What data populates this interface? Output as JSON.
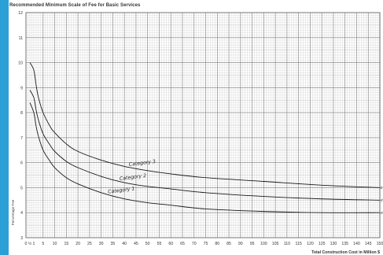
{
  "page": {
    "title": "Recommended Minimum Scale of Fee for Basic Services",
    "accent_color": "#2aa0d6"
  },
  "chart_data": {
    "type": "line",
    "title": "Recommended Minimum Scale of Fee for Basic Services",
    "xlabel": "Total Construction Cost in Million $",
    "ylabel": "Percentage Fee",
    "xlim": [
      0,
      150
    ],
    "ylim": [
      3,
      12
    ],
    "x_ticks": [
      0,
      0.5,
      1,
      5,
      10,
      15,
      20,
      25,
      30,
      35,
      40,
      45,
      50,
      55,
      60,
      65,
      70,
      75,
      80,
      85,
      90,
      95,
      100,
      105,
      110,
      115,
      120,
      125,
      130,
      135,
      140,
      145,
      150
    ],
    "x_tick_labels": [
      "0",
      "½",
      "1",
      "5",
      "10",
      "15",
      "20",
      "25",
      "30",
      "35",
      "40",
      "45",
      "50",
      "55",
      "60",
      "65",
      "70",
      "75",
      "80",
      "85",
      "90",
      "95",
      "100",
      "105",
      "110",
      "115",
      "120",
      "125",
      "130",
      "135",
      "140",
      "145",
      "150"
    ],
    "y_ticks": [
      3,
      4,
      5,
      6,
      7,
      8,
      9,
      10,
      11,
      12
    ],
    "grid": true,
    "series": [
      {
        "name": "Category 3",
        "label": "Category 3",
        "label_x": 42,
        "x": [
          0.5,
          1,
          2,
          3,
          5,
          8,
          10,
          15,
          20,
          30,
          40,
          50,
          60,
          75,
          100,
          125,
          150
        ],
        "values": [
          10.0,
          9.7,
          9.1,
          8.6,
          8.0,
          7.45,
          7.2,
          6.75,
          6.45,
          6.1,
          5.85,
          5.68,
          5.55,
          5.4,
          5.25,
          5.1,
          5.0
        ]
      },
      {
        "name": "Category 2",
        "label": "Category 2",
        "label_x": 38,
        "x": [
          0.5,
          1,
          2,
          3,
          5,
          8,
          10,
          15,
          20,
          30,
          40,
          50,
          60,
          75,
          100,
          125,
          150
        ],
        "values": [
          8.9,
          8.6,
          8.1,
          7.7,
          7.15,
          6.7,
          6.45,
          6.05,
          5.8,
          5.45,
          5.2,
          5.05,
          4.95,
          4.8,
          4.65,
          4.55,
          4.5
        ]
      },
      {
        "name": "Category 1",
        "label": "Category 1",
        "label_x": 33,
        "x": [
          0.5,
          1,
          2,
          3,
          5,
          8,
          10,
          15,
          20,
          30,
          40,
          50,
          60,
          75,
          100,
          125,
          150
        ],
        "values": [
          8.4,
          8.0,
          7.45,
          7.05,
          6.5,
          6.05,
          5.8,
          5.4,
          5.15,
          4.8,
          4.55,
          4.4,
          4.3,
          4.15,
          4.05,
          4.0,
          4.0
        ]
      }
    ],
    "end_labels": [
      "5%",
      "4½",
      "4%"
    ]
  }
}
